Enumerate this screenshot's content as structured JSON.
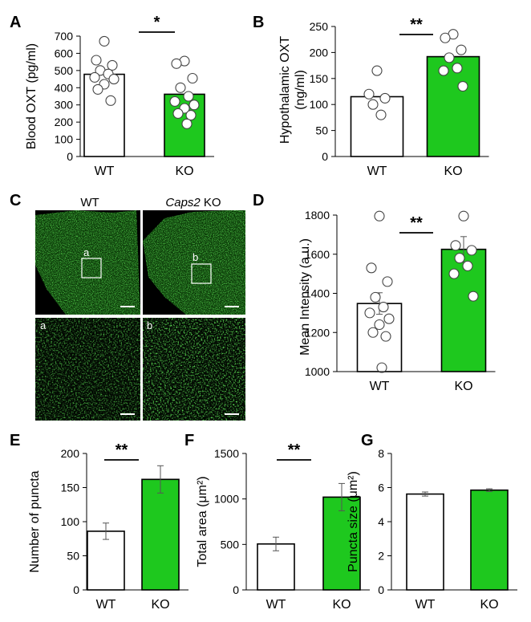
{
  "colors": {
    "wt_fill": "#ffffff",
    "ko_fill": "#1ec81e",
    "stroke": "#000000",
    "micrograph_green": "#22d11e"
  },
  "chart_data": [
    {
      "panel": "A",
      "type": "bar",
      "categories": [
        "WT",
        "KO"
      ],
      "values": [
        478,
        362
      ],
      "points": [
        [
          670,
          560,
          530,
          500,
          480,
          460,
          450,
          420,
          390,
          325
        ],
        [
          555,
          540,
          455,
          400,
          350,
          320,
          300,
          280,
          250,
          240,
          190
        ]
      ],
      "ylabel": "Blood OXT (pg/ml)",
      "ylim": [
        0,
        700
      ],
      "yticks": [
        "0",
        "100",
        "200",
        "300",
        "400",
        "500",
        "600",
        "700"
      ],
      "significance": "*"
    },
    {
      "panel": "B",
      "type": "bar",
      "categories": [
        "WT",
        "KO"
      ],
      "values": [
        115,
        192
      ],
      "points": [
        [
          165,
          120,
          112,
          100,
          80
        ],
        [
          235,
          228,
          205,
          190,
          170,
          165,
          135
        ]
      ],
      "ylabel_lines": [
        "Hypothalamic OXT",
        "(ng/ml)"
      ],
      "ylim": [
        0,
        250
      ],
      "yticks": [
        "0",
        "50",
        "100",
        "150",
        "200",
        "250"
      ],
      "significance": "**"
    },
    {
      "panel": "D",
      "type": "bar",
      "categories": [
        "WT",
        "KO"
      ],
      "values": [
        1348,
        1625
      ],
      "errors": [
        55,
        65
      ],
      "points": [
        [
          1795,
          1530,
          1460,
          1380,
          1330,
          1300,
          1270,
          1240,
          1200,
          1180,
          1020
        ],
        [
          1795,
          1645,
          1620,
          1580,
          1540,
          1500,
          1385
        ]
      ],
      "ylabel": "Mean Intensity (a.u.)",
      "ylim": [
        1000,
        1800
      ],
      "yticks": [
        "1000",
        "1200",
        "1400",
        "1600",
        "1800"
      ],
      "significance": "**"
    },
    {
      "panel": "E",
      "type": "bar",
      "categories": [
        "WT",
        "KO"
      ],
      "values": [
        86,
        162
      ],
      "errors": [
        12,
        20
      ],
      "ylabel": "Number of puncta",
      "ylim": [
        0,
        200
      ],
      "yticks": [
        "0",
        "50",
        "100",
        "150",
        "200"
      ],
      "significance": "**"
    },
    {
      "panel": "F",
      "type": "bar",
      "categories": [
        "WT",
        "KO"
      ],
      "values": [
        505,
        1020
      ],
      "errors": [
        75,
        150
      ],
      "ylabel": "Total area (μm²)",
      "ylim": [
        0,
        1500
      ],
      "yticks": [
        "0",
        "500",
        "1000",
        "1500"
      ],
      "significance": "**"
    },
    {
      "panel": "G",
      "type": "bar",
      "categories": [
        "WT",
        "KO"
      ],
      "values": [
        5.62,
        5.85
      ],
      "errors": [
        0.12,
        0.08
      ],
      "ylabel": "Puncta size (μm²)",
      "ylim": [
        0,
        8
      ],
      "yticks": [
        "0",
        "2",
        "4",
        "6",
        "8"
      ],
      "significance": ""
    }
  ],
  "panel_c": {
    "letter": "C",
    "col_wt": "WT",
    "col_ko_italic": "Caps2",
    "col_ko_rest": " KO",
    "inset_a": "a",
    "inset_b": "b"
  }
}
